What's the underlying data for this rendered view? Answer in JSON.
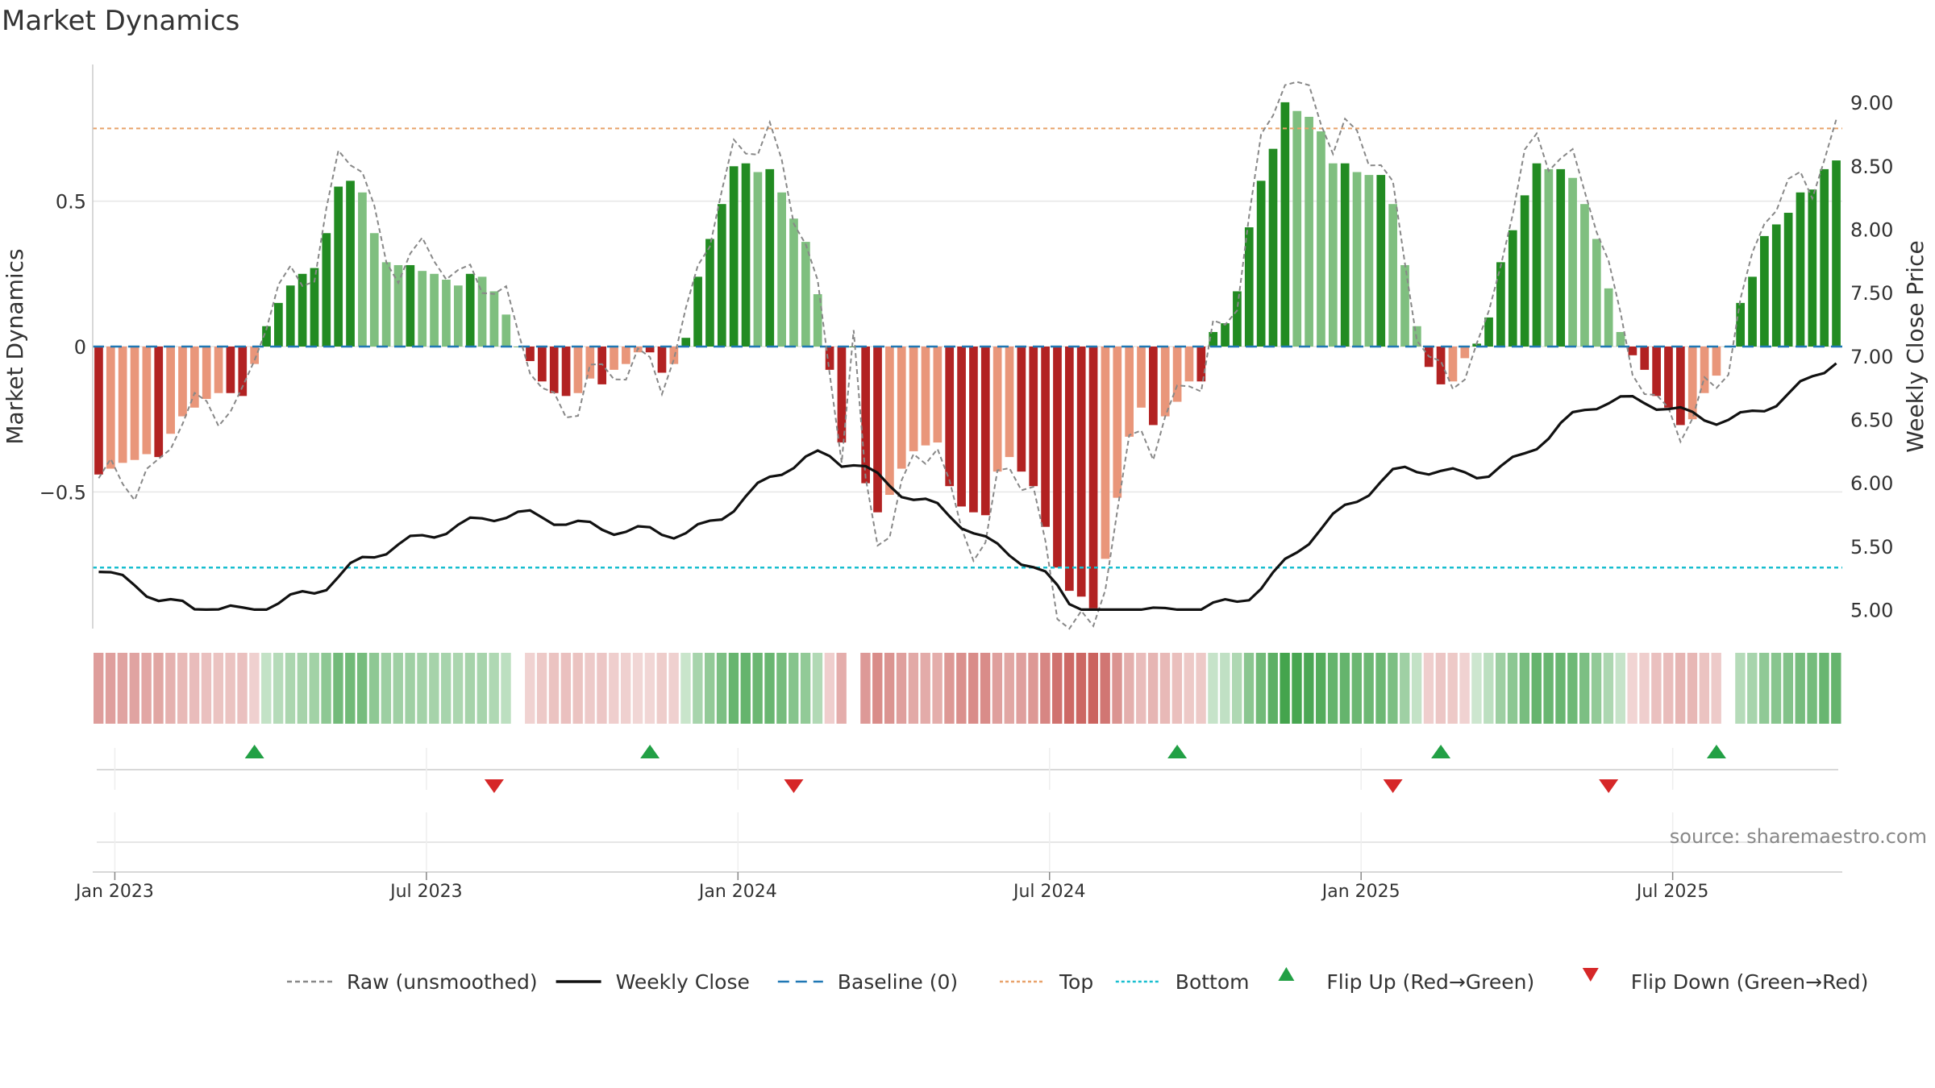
{
  "title": "Market Dynamics",
  "watermark": "source: sharemaestro.com",
  "chart_data": {
    "type": "bar",
    "y_left_label": "Market Dynamics",
    "y_right_label": "Weekly Close Price",
    "y_left_ticks": [
      "0.5",
      "0",
      "−0.5"
    ],
    "y_left_tick_values": [
      0.5,
      0,
      -0.5
    ],
    "y_right_ticks": [
      "9.00",
      "8.50",
      "8.00",
      "7.50",
      "7.00",
      "6.50",
      "6.00",
      "5.50",
      "5.00"
    ],
    "y_right_tick_values": [
      9.0,
      8.5,
      8.0,
      7.5,
      7.0,
      6.5,
      6.0,
      5.5,
      5.0
    ],
    "x_ticks": [
      "Jan 2023",
      "Jul 2023",
      "Jan 2024",
      "Jul 2024",
      "Jan 2025",
      "Jul 2025"
    ],
    "x_tick_weeks": [
      0,
      26,
      52,
      78,
      104,
      130
    ],
    "ylim_left": [
      -0.97,
      0.97
    ],
    "ylim_right": [
      4.85,
      9.3
    ],
    "top_level": 0.75,
    "bottom_level": -0.76,
    "baseline": 0,
    "bars": [
      -0.44,
      -0.42,
      -0.4,
      -0.39,
      -0.37,
      -0.38,
      -0.3,
      -0.24,
      -0.21,
      -0.18,
      -0.16,
      -0.16,
      -0.17,
      -0.06,
      0.07,
      0.15,
      0.21,
      0.25,
      0.27,
      0.39,
      0.55,
      0.57,
      0.53,
      0.39,
      0.29,
      0.28,
      0.28,
      0.26,
      0.25,
      0.23,
      0.21,
      0.25,
      0.24,
      0.19,
      0.11,
      0.0,
      -0.05,
      -0.12,
      -0.16,
      -0.17,
      -0.16,
      -0.11,
      -0.13,
      -0.08,
      -0.06,
      -0.02,
      -0.02,
      -0.09,
      -0.06,
      0.03,
      0.24,
      0.37,
      0.49,
      0.62,
      0.63,
      0.6,
      0.61,
      0.53,
      0.44,
      0.36,
      0.18,
      -0.08,
      -0.33,
      0.0,
      -0.47,
      -0.57,
      -0.51,
      -0.42,
      -0.36,
      -0.34,
      -0.33,
      -0.48,
      -0.55,
      -0.57,
      -0.58,
      -0.43,
      -0.38,
      -0.43,
      -0.48,
      -0.62,
      -0.76,
      -0.84,
      -0.86,
      -0.9,
      -0.73,
      -0.52,
      -0.31,
      -0.21,
      -0.27,
      -0.24,
      -0.19,
      -0.12,
      -0.12,
      0.05,
      0.08,
      0.19,
      0.41,
      0.57,
      0.68,
      0.84,
      0.81,
      0.79,
      0.74,
      0.63,
      0.63,
      0.6,
      0.59,
      0.59,
      0.49,
      0.28,
      0.07,
      -0.07,
      -0.13,
      -0.12,
      -0.04,
      0.01,
      0.1,
      0.29,
      0.4,
      0.52,
      0.63,
      0.61,
      0.61,
      0.58,
      0.49,
      0.37,
      0.2,
      0.05,
      -0.03,
      -0.08,
      -0.17,
      -0.21,
      -0.27,
      -0.25,
      -0.16,
      -0.1,
      0.0,
      0.15,
      0.24,
      0.38,
      0.42,
      0.46,
      0.53,
      0.54,
      0.61,
      0.64
    ],
    "flips_up": [
      13,
      46,
      90,
      112,
      135
    ],
    "flips_down": [
      33,
      58,
      108,
      126
    ]
  },
  "legend": [
    {
      "label": "Raw (unsmoothed)",
      "style": "dashed",
      "color": "#888888"
    },
    {
      "label": "Weekly Close",
      "style": "solid",
      "color": "#111111"
    },
    {
      "label": "Baseline (0)",
      "style": "dash",
      "color": "#1f77b4"
    },
    {
      "label": "Top",
      "style": "dotted",
      "color": "#e8a26a"
    },
    {
      "label": "Bottom",
      "style": "dotted",
      "color": "#17becf"
    },
    {
      "label": "Flip Up (Red→Green)",
      "style": "tri-up",
      "color": "#22a045"
    },
    {
      "label": "Flip Down (Green→Red)",
      "style": "tri-down",
      "color": "#d62728"
    }
  ],
  "colors": {
    "strong_green": "#228B22",
    "light_green": "#7FBF7F",
    "strong_red": "#B22222",
    "light_red": "#E9967A",
    "grid": "#e6e6e6"
  }
}
